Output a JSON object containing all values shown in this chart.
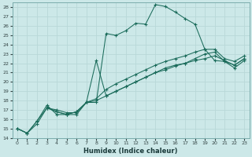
{
  "xlabel": "Humidex (Indice chaleur)",
  "bg_color": "#cce8e8",
  "grid_color": "#b0d0d0",
  "line_color": "#1a6b5a",
  "xlim": [
    -0.5,
    23.5
  ],
  "ylim": [
    14,
    28.5
  ],
  "xticks": [
    0,
    1,
    2,
    3,
    4,
    5,
    6,
    7,
    8,
    9,
    10,
    11,
    12,
    13,
    14,
    15,
    16,
    17,
    18,
    19,
    20,
    21,
    22,
    23
  ],
  "yticks": [
    14,
    15,
    16,
    17,
    18,
    19,
    20,
    21,
    22,
    23,
    24,
    25,
    26,
    27,
    28
  ],
  "series": [
    {
      "x": [
        0,
        1,
        2,
        3,
        4,
        5,
        6,
        7,
        8,
        9,
        10,
        11,
        12,
        13,
        14,
        15,
        16,
        17,
        18,
        19,
        20,
        21,
        22,
        23
      ],
      "y": [
        15,
        14.5,
        15.5,
        17.2,
        17.0,
        16.7,
        16.7,
        17.8,
        17.8,
        25.2,
        25.0,
        25.5,
        26.3,
        26.2,
        28.3,
        28.1,
        27.5,
        26.8,
        26.2,
        23.5,
        22.3,
        22.2,
        21.8,
        22.5
      ]
    },
    {
      "x": [
        0,
        1,
        2,
        3,
        4,
        5,
        6,
        7,
        8,
        9,
        10,
        11,
        12,
        13,
        14,
        15,
        16,
        17,
        18,
        19,
        20,
        21,
        22,
        23
      ],
      "y": [
        15,
        14.5,
        15.8,
        17.5,
        16.5,
        16.5,
        16.5,
        17.8,
        22.3,
        18.5,
        19.0,
        19.5,
        20.0,
        20.5,
        21.0,
        21.3,
        21.7,
        22.0,
        22.3,
        22.5,
        22.8,
        22.3,
        21.8,
        22.5
      ]
    },
    {
      "x": [
        0,
        1,
        2,
        3,
        4,
        5,
        6,
        7,
        8,
        9,
        10,
        11,
        12,
        13,
        14,
        15,
        16,
        17,
        18,
        19,
        20,
        21,
        22,
        23
      ],
      "y": [
        15,
        14.5,
        15.8,
        17.2,
        16.8,
        16.5,
        16.8,
        17.8,
        18.0,
        18.5,
        19.0,
        19.5,
        20.0,
        20.5,
        21.0,
        21.5,
        21.8,
        22.0,
        22.5,
        23.0,
        23.2,
        22.2,
        21.5,
        22.3
      ]
    },
    {
      "x": [
        3,
        4,
        5,
        6,
        7,
        8,
        9,
        10,
        11,
        12,
        13,
        14,
        15,
        16,
        17,
        18,
        19,
        20,
        21,
        22,
        23
      ],
      "y": [
        17.3,
        16.8,
        16.5,
        16.8,
        17.8,
        18.2,
        19.2,
        19.8,
        20.3,
        20.8,
        21.3,
        21.8,
        22.2,
        22.5,
        22.8,
        23.2,
        23.5,
        23.5,
        22.5,
        22.2,
        22.8
      ]
    }
  ]
}
